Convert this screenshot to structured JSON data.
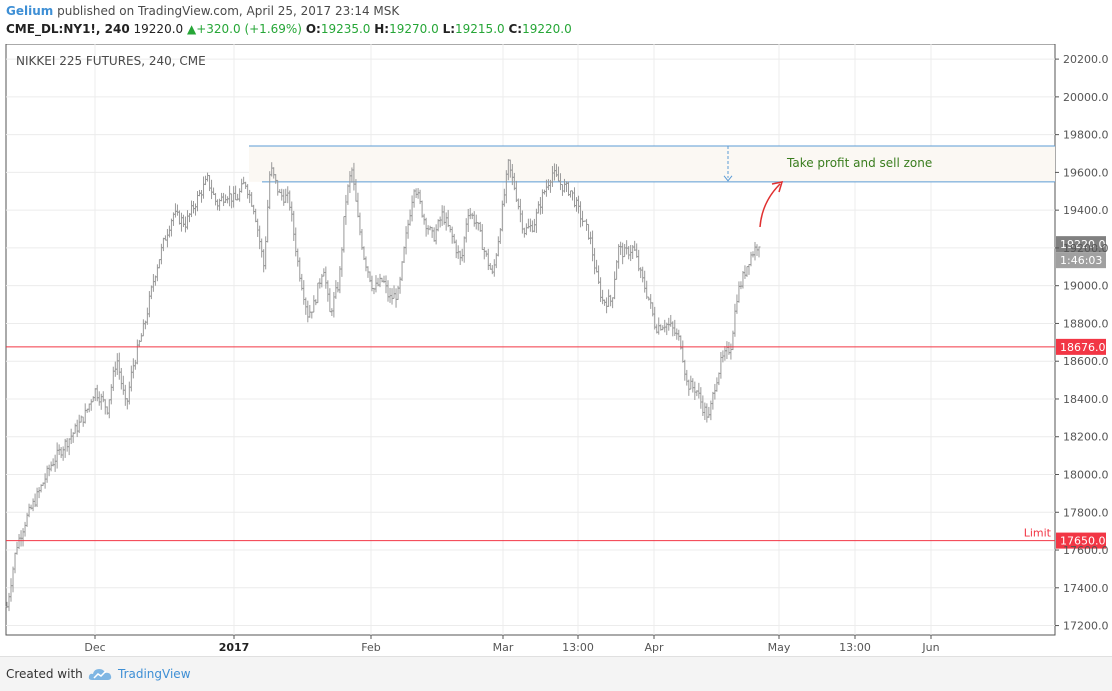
{
  "header": {
    "author": "Gelium",
    "publish_text": "published on TradingView.com, April 25, 2017 23:14 MSK",
    "symbol": "CME_DL:NY1!, 240",
    "last": "19220.0",
    "change": "+320.0 (+1.69%)",
    "o_label": "O:",
    "o_value": "19235.0",
    "h_label": "H:",
    "h_value": "19270.0",
    "l_label": "L:",
    "l_value": "19215.0",
    "c_label": "C:",
    "c_value": "19220.0"
  },
  "chart_data": {
    "type": "bar",
    "title": "NIKKEI 225 FUTURES, 240, CME",
    "ylim": [
      17150,
      20280
    ],
    "y_ticks": [
      "20200.0",
      "20000.0",
      "19800.0",
      "19600.0",
      "19400.0",
      "19200.0",
      "19000.0",
      "18800.0",
      "18600.0",
      "18400.0",
      "18200.0",
      "18000.0",
      "17800.0",
      "17600.0",
      "17400.0",
      "17200.0"
    ],
    "x_ticks": [
      {
        "label": "Dec",
        "bold": false
      },
      {
        "label": "2017",
        "bold": true
      },
      {
        "label": "Feb",
        "bold": false
      },
      {
        "label": "Mar",
        "bold": false
      },
      {
        "label": "13:00",
        "bold": false
      },
      {
        "label": "Apr",
        "bold": false
      },
      {
        "label": "May",
        "bold": false
      },
      {
        "label": "13:00",
        "bold": false
      },
      {
        "label": "Jun",
        "bold": false
      }
    ],
    "price_path": [
      [
        0,
        17300
      ],
      [
        3,
        17620
      ],
      [
        6,
        17760
      ],
      [
        10,
        17900
      ],
      [
        14,
        18050
      ],
      [
        18,
        18150
      ],
      [
        22,
        18240
      ],
      [
        25,
        18320
      ],
      [
        28,
        18450
      ],
      [
        32,
        18350
      ],
      [
        35,
        18620
      ],
      [
        38,
        18350
      ],
      [
        40,
        18560
      ],
      [
        44,
        18800
      ],
      [
        47,
        19050
      ],
      [
        50,
        19230
      ],
      [
        53,
        19380
      ],
      [
        57,
        19330
      ],
      [
        61,
        19470
      ],
      [
        64,
        19560
      ],
      [
        67,
        19430
      ],
      [
        70,
        19490
      ],
      [
        73,
        19450
      ],
      [
        76,
        19550
      ],
      [
        79,
        19400
      ],
      [
        82,
        19100
      ],
      [
        84,
        19630
      ],
      [
        87,
        19480
      ],
      [
        90,
        19460
      ],
      [
        93,
        19100
      ],
      [
        96,
        18850
      ],
      [
        98,
        18900
      ],
      [
        101,
        19110
      ],
      [
        103,
        18850
      ],
      [
        106,
        19020
      ],
      [
        108,
        19440
      ],
      [
        110,
        19620
      ],
      [
        112,
        19350
      ],
      [
        114,
        19150
      ],
      [
        117,
        18980
      ],
      [
        120,
        19030
      ],
      [
        122,
        18930
      ],
      [
        125,
        18960
      ],
      [
        127,
        19220
      ],
      [
        130,
        19540
      ],
      [
        133,
        19360
      ],
      [
        136,
        19250
      ],
      [
        139,
        19380
      ],
      [
        142,
        19260
      ],
      [
        145,
        19120
      ],
      [
        147,
        19400
      ],
      [
        150,
        19330
      ],
      [
        152,
        19200
      ],
      [
        155,
        19050
      ],
      [
        157,
        19270
      ],
      [
        160,
        19640
      ],
      [
        162,
        19520
      ],
      [
        165,
        19290
      ],
      [
        168,
        19320
      ],
      [
        171,
        19480
      ],
      [
        174,
        19600
      ],
      [
        177,
        19530
      ],
      [
        180,
        19500
      ],
      [
        183,
        19370
      ],
      [
        186,
        19260
      ],
      [
        188,
        19060
      ],
      [
        190,
        18920
      ],
      [
        193,
        18920
      ],
      [
        195,
        19200
      ],
      [
        197,
        19170
      ],
      [
        200,
        19200
      ],
      [
        202,
        19070
      ],
      [
        205,
        18920
      ],
      [
        207,
        18780
      ],
      [
        210,
        18800
      ],
      [
        212,
        18780
      ],
      [
        215,
        18700
      ],
      [
        217,
        18480
      ],
      [
        220,
        18450
      ],
      [
        222,
        18360
      ],
      [
        224,
        18300
      ],
      [
        226,
        18480
      ],
      [
        228,
        18600
      ],
      [
        231,
        18680
      ],
      [
        233,
        18950
      ],
      [
        235,
        19050
      ],
      [
        237,
        19150
      ],
      [
        240,
        19230
      ]
    ],
    "current_price": "19220.0",
    "countdown": "1:46:03",
    "levels": [
      {
        "price": "18676.0",
        "color": "#f23645"
      },
      {
        "price": "17650.0",
        "color": "#f23645",
        "note": "Limit"
      }
    ],
    "zone": {
      "top": 19740,
      "bottom": 19550,
      "label": "Take profit and sell zone",
      "color": "#5b9bd5",
      "label_color": "#3a7d1e"
    },
    "grid": true,
    "colors": {
      "bars": "#999999",
      "axis_text": "#555555",
      "price_tag": "#808080",
      "level": "#f23645",
      "arrow": "#e03030"
    }
  },
  "footer": {
    "created_with": "Created with",
    "brand": "TradingView",
    "logo_icon": "tradingview-cloud-icon"
  }
}
